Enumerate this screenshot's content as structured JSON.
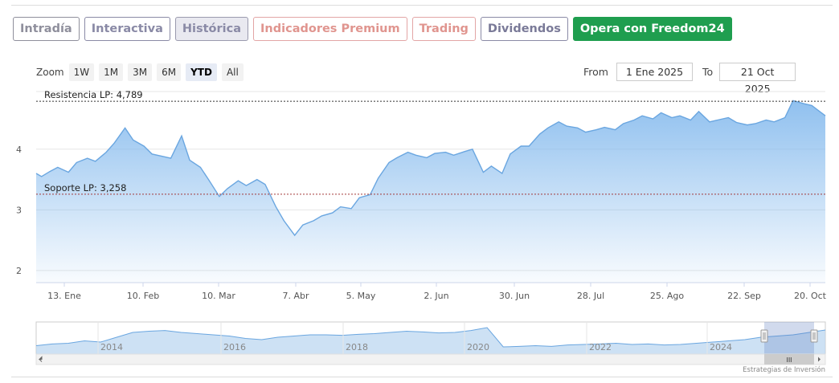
{
  "tabs": [
    {
      "label": "Intradía",
      "border": "#8f8f9c",
      "color": "#8f8f9c",
      "bg": "#ffffff"
    },
    {
      "label": "Interactiva",
      "border": "#8a8aa6",
      "color": "#8a8aa6",
      "bg": "#ffffff"
    },
    {
      "label": "Histórica",
      "border": "#9a9aae",
      "color": "#8a8aa6",
      "bg": "#e9e9f0"
    },
    {
      "label": "Indicadores Premium",
      "border": "#e3a5a5",
      "color": "#e0958f",
      "bg": "#ffffff"
    },
    {
      "label": "Trading",
      "border": "#e3a5a5",
      "color": "#e0958f",
      "bg": "#ffffff"
    },
    {
      "label": "Dividendos",
      "border": "#8a8aa6",
      "color": "#7a7a98",
      "bg": "#ffffff"
    },
    {
      "label": "Opera con Freedom24",
      "border": "#1f9e4f",
      "color": "#ffffff",
      "bg": "#1f9e4f"
    }
  ],
  "zoom": {
    "label": "Zoom",
    "buttons": [
      "1W",
      "1M",
      "3M",
      "6M",
      "YTD",
      "All"
    ],
    "active": "YTD"
  },
  "range": {
    "from_label": "From",
    "from_value": "1 Ene 2025",
    "to_label": "To",
    "to_value": "21 Oct 2025"
  },
  "chart_data": {
    "type": "area",
    "x_ticks": [
      "13. Ene",
      "10. Feb",
      "10. Mar",
      "7. Abr",
      "5. May",
      "2. Jun",
      "30. Jun",
      "28. Jul",
      "25. Ago",
      "22. Sep",
      "20. Oct"
    ],
    "y_ticks": [
      2,
      3,
      4
    ],
    "ylim": [
      1.8,
      4.95
    ],
    "color": "#7cb5ec",
    "grid": true,
    "reference_lines": [
      {
        "label": "Resistencia LP: 4,789",
        "value": 4.789,
        "color": "#333333",
        "style": "dotted"
      },
      {
        "label": "Soporte LP: 3,258",
        "value": 3.258,
        "color": "#a33a3a",
        "style": "dotted"
      }
    ],
    "series": [
      {
        "x": [
          "2025-01-01",
          "2025-01-03",
          "2025-01-06",
          "2025-01-09",
          "2025-01-13",
          "2025-01-16",
          "2025-01-20",
          "2025-01-23",
          "2025-01-27",
          "2025-01-30",
          "2025-02-03",
          "2025-02-06",
          "2025-02-10",
          "2025-02-13",
          "2025-02-17",
          "2025-02-20",
          "2025-02-24",
          "2025-02-27",
          "2025-03-03",
          "2025-03-06",
          "2025-03-10",
          "2025-03-13",
          "2025-03-17",
          "2025-03-20",
          "2025-03-24",
          "2025-03-27",
          "2025-03-31",
          "2025-04-03",
          "2025-04-07",
          "2025-04-10",
          "2025-04-14",
          "2025-04-17",
          "2025-04-21",
          "2025-04-24",
          "2025-04-28",
          "2025-05-01",
          "2025-05-05",
          "2025-05-08",
          "2025-05-12",
          "2025-05-15",
          "2025-05-19",
          "2025-05-22",
          "2025-05-26",
          "2025-05-29",
          "2025-06-02",
          "2025-06-05",
          "2025-06-09",
          "2025-06-12",
          "2025-06-16",
          "2025-06-19",
          "2025-06-23",
          "2025-06-26",
          "2025-06-30",
          "2025-07-03",
          "2025-07-07",
          "2025-07-10",
          "2025-07-14",
          "2025-07-17",
          "2025-07-21",
          "2025-07-24",
          "2025-07-28",
          "2025-07-31",
          "2025-08-04",
          "2025-08-07",
          "2025-08-11",
          "2025-08-14",
          "2025-08-18",
          "2025-08-21",
          "2025-08-25",
          "2025-08-28",
          "2025-09-01",
          "2025-09-04",
          "2025-09-08",
          "2025-09-11",
          "2025-09-15",
          "2025-09-18",
          "2025-09-22",
          "2025-09-25",
          "2025-09-29",
          "2025-10-02",
          "2025-10-06",
          "2025-10-09",
          "2025-10-13",
          "2025-10-16",
          "2025-10-21"
        ],
        "values": [
          3.6,
          3.55,
          3.63,
          3.7,
          3.62,
          3.78,
          3.85,
          3.8,
          3.95,
          4.1,
          4.35,
          4.15,
          4.05,
          3.92,
          3.88,
          3.85,
          4.22,
          3.82,
          3.7,
          3.5,
          3.22,
          3.35,
          3.48,
          3.4,
          3.5,
          3.42,
          3.05,
          2.82,
          2.58,
          2.75,
          2.82,
          2.9,
          2.95,
          3.05,
          3.02,
          3.2,
          3.25,
          3.52,
          3.78,
          3.86,
          3.95,
          3.9,
          3.86,
          3.93,
          3.95,
          3.9,
          3.96,
          4.0,
          3.62,
          3.72,
          3.6,
          3.92,
          4.05,
          4.05,
          4.25,
          4.35,
          4.45,
          4.38,
          4.35,
          4.28,
          4.32,
          4.36,
          4.32,
          4.42,
          4.48,
          4.55,
          4.5,
          4.6,
          4.52,
          4.55,
          4.48,
          4.62,
          4.45,
          4.48,
          4.52,
          4.44,
          4.4,
          4.42,
          4.48,
          4.45,
          4.52,
          4.8,
          4.75,
          4.72,
          4.55
        ]
      }
    ]
  },
  "navigator": {
    "labels": [
      "2014",
      "2016",
      "2018",
      "2020",
      "2022",
      "2024"
    ],
    "values": [
      0.15,
      0.22,
      0.25,
      0.35,
      0.3,
      0.5,
      0.7,
      0.75,
      0.78,
      0.7,
      0.65,
      0.6,
      0.55,
      0.45,
      0.4,
      0.5,
      0.55,
      0.6,
      0.6,
      0.58,
      0.62,
      0.65,
      0.7,
      0.75,
      0.72,
      0.68,
      0.7,
      0.78,
      0.9,
      0.1,
      0.12,
      0.15,
      0.12,
      0.18,
      0.2,
      0.22,
      0.25,
      0.2,
      0.22,
      0.18,
      0.2,
      0.25,
      0.3,
      0.35,
      0.4,
      0.5,
      0.55,
      0.6,
      0.7,
      0.8
    ],
    "scroll_glyph": "III"
  },
  "credits": "Estrategias de Inversión"
}
